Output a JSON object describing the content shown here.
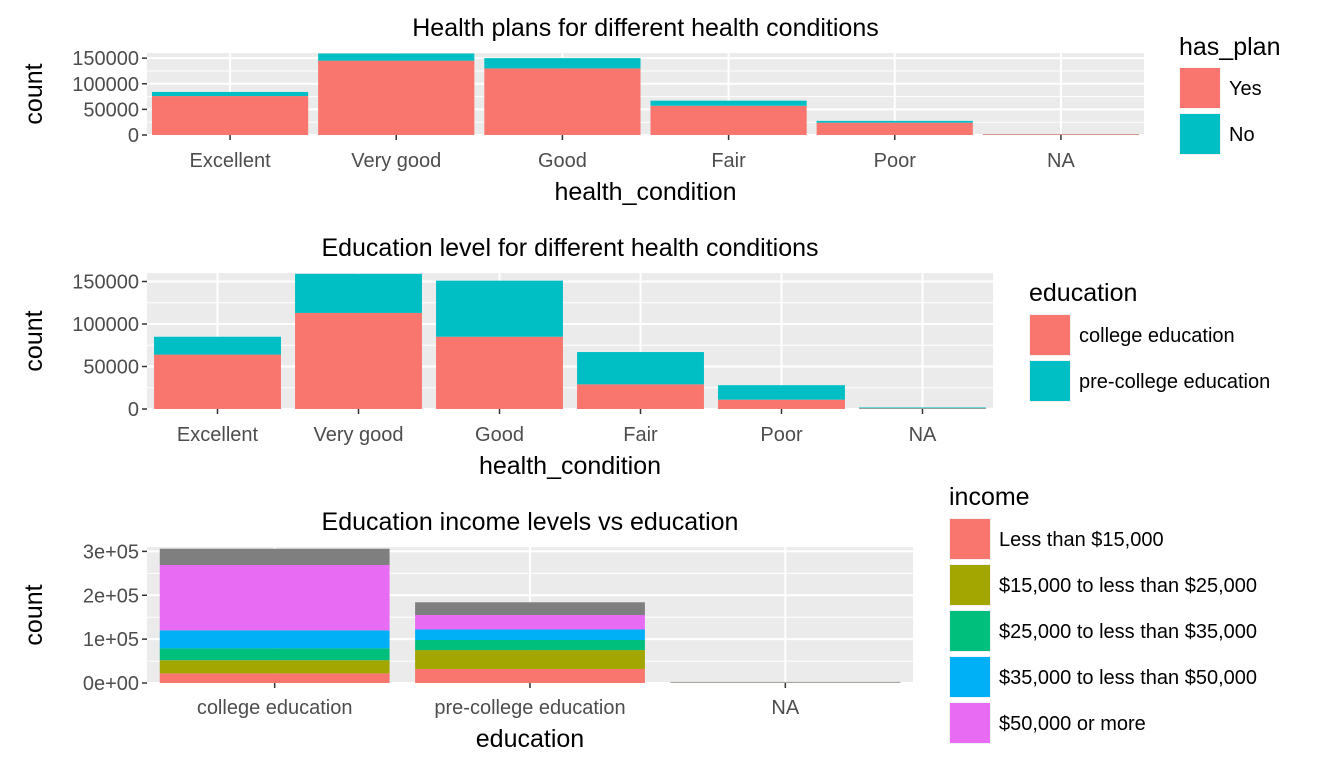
{
  "chart_data": [
    {
      "type": "bar",
      "title": "Health plans for different health conditions",
      "xlabel": "health_condition",
      "ylabel": "count",
      "categories": [
        "Excellent",
        "Very good",
        "Good",
        "Fair",
        "Poor",
        "NA"
      ],
      "ylim": [
        0,
        160000
      ],
      "yticks": [
        0,
        50000,
        100000,
        150000
      ],
      "ytick_labels": [
        "0",
        "50000",
        "100000",
        "150000"
      ],
      "stacked": true,
      "legend": {
        "title": "has_plan",
        "position": "right"
      },
      "series": [
        {
          "name": "Yes",
          "color": "#F8766D",
          "values": [
            76000,
            145000,
            130000,
            57000,
            24000,
            1500
          ]
        },
        {
          "name": "No",
          "color": "#00BFC4",
          "values": [
            8000,
            14000,
            20000,
            10000,
            3500,
            300
          ]
        }
      ]
    },
    {
      "type": "bar",
      "title": "Education level for different health conditions",
      "xlabel": "health_condition",
      "ylabel": "count",
      "categories": [
        "Excellent",
        "Very good",
        "Good",
        "Fair",
        "Poor",
        "NA"
      ],
      "ylim": [
        0,
        160000
      ],
      "yticks": [
        0,
        50000,
        100000,
        150000
      ],
      "ytick_labels": [
        "0",
        "50000",
        "100000",
        "150000"
      ],
      "stacked": true,
      "legend": {
        "title": "education",
        "position": "right"
      },
      "series": [
        {
          "name": "college education",
          "color": "#F8766D",
          "values": [
            64000,
            113000,
            85000,
            29000,
            11000,
            700
          ]
        },
        {
          "name": "pre-college education",
          "color": "#00BFC4",
          "values": [
            21000,
            46000,
            66000,
            38000,
            17000,
            1100
          ]
        }
      ]
    },
    {
      "type": "bar",
      "title": "Education income levels vs education",
      "xlabel": "education",
      "ylabel": "count",
      "categories": [
        "college education",
        "pre-college education",
        "NA"
      ],
      "ylim": [
        0,
        310000
      ],
      "yticks": [
        0,
        100000,
        200000,
        300000
      ],
      "ytick_labels": [
        "0e+00",
        "1e+05",
        "2e+05",
        "3e+05"
      ],
      "stacked": true,
      "legend": {
        "title": "income",
        "position": "right"
      },
      "series": [
        {
          "name": "Less than $15,000",
          "color": "#F8766D",
          "values": [
            22000,
            32000,
            500
          ]
        },
        {
          "name": "$15,000 to less than $25,000",
          "color": "#A3A500",
          "values": [
            30000,
            43000,
            300
          ]
        },
        {
          "name": "$25,000 to less than $35,000",
          "color": "#00BF7D",
          "values": [
            27000,
            23000,
            200
          ]
        },
        {
          "name": "$35,000 to less than $50,000",
          "color": "#00B0F6",
          "values": [
            41000,
            24000,
            200
          ]
        },
        {
          "name": "$50,000 or more",
          "color": "#E76BF3",
          "values": [
            149000,
            33000,
            300
          ]
        },
        {
          "name": "",
          "color": "#7F7F7F",
          "values": [
            37000,
            29000,
            1000
          ]
        }
      ]
    }
  ]
}
